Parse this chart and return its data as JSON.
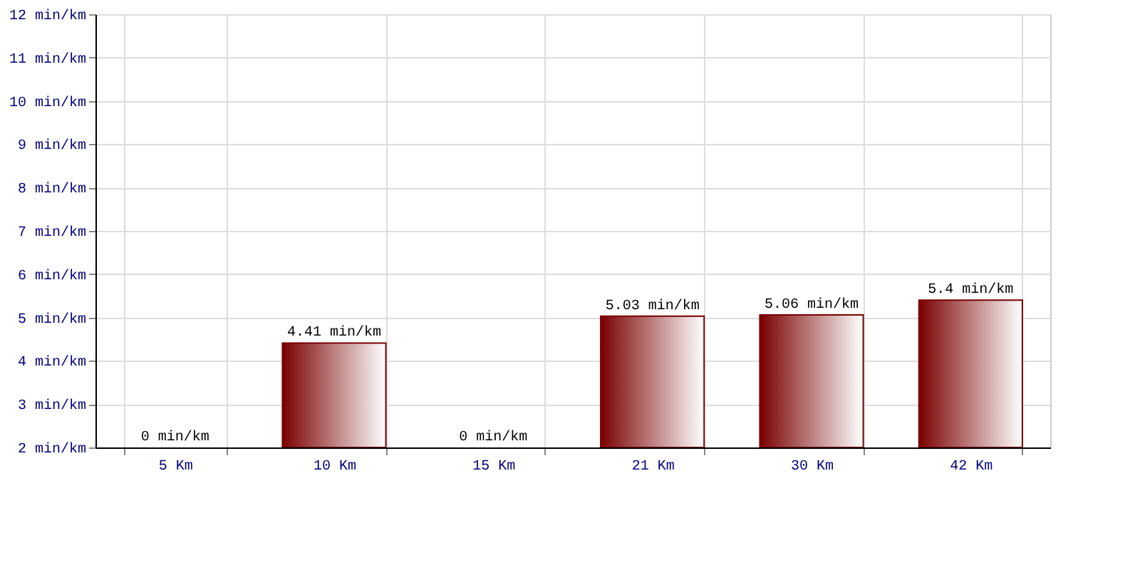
{
  "chart_data": {
    "type": "bar",
    "categories": [
      "5 Km",
      "10 Km",
      "15 Km",
      "21 Km",
      "30 Km",
      "42 Km"
    ],
    "values": [
      null,
      4.41,
      null,
      5.03,
      5.06,
      5.4
    ],
    "value_labels": [
      "0 min/km",
      "4.41 min/km",
      "0 min/km",
      "5.03 min/km",
      "5.06 min/km",
      "5.4 min/km"
    ],
    "color": "#7a0000",
    "ylim": [
      2,
      12
    ],
    "yticks": [
      {
        "value": 2,
        "label": "2 min/km"
      },
      {
        "value": 3,
        "label": "3 min/km"
      },
      {
        "value": 4,
        "label": "4 min/km"
      },
      {
        "value": 5,
        "label": "5 min/km"
      },
      {
        "value": 6,
        "label": "6 min/km"
      },
      {
        "value": 7,
        "label": "7 min/km"
      },
      {
        "value": 8,
        "label": "8 min/km"
      },
      {
        "value": 9,
        "label": "9 min/km"
      },
      {
        "value": 10,
        "label": "10 min/km"
      },
      {
        "value": 11,
        "label": "11 min/km"
      },
      {
        "value": 12,
        "label": "12 min/km"
      }
    ],
    "grid": true
  }
}
